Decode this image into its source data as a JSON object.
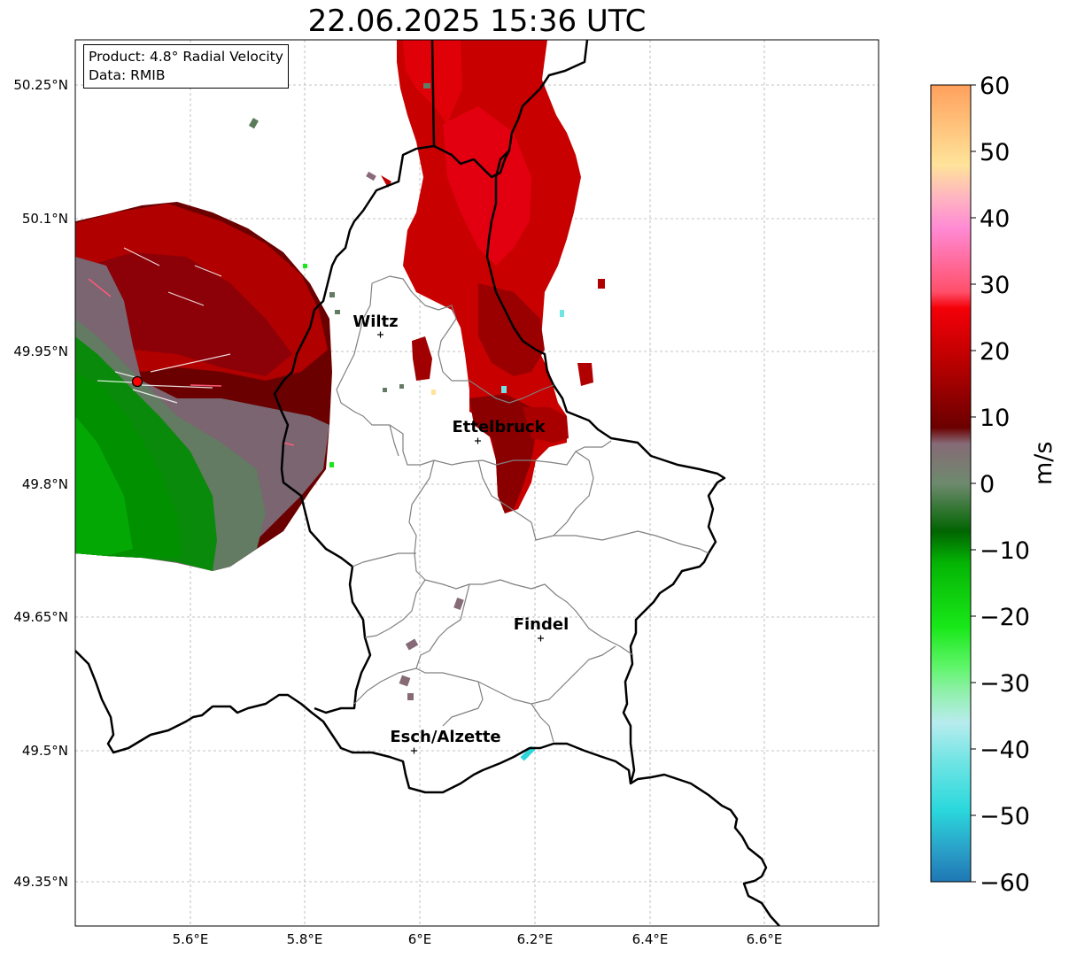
{
  "title": "22.06.2025 15:36 UTC",
  "info_box": {
    "product_line": "Product: 4.8° Radial Velocity",
    "data_line": "Data: RMIB"
  },
  "lat_ticks": [
    "50.25°N",
    "50.1°N",
    "49.95°N",
    "49.8°N",
    "49.65°N",
    "49.5°N",
    "49.35°N"
  ],
  "lon_ticks": [
    "5.6°E",
    "5.8°E",
    "6°E",
    "6.2°E",
    "6.4°E",
    "6.6°E"
  ],
  "cities": [
    {
      "name": "Wiltz"
    },
    {
      "name": "Ettelbruck"
    },
    {
      "name": "Findel"
    },
    {
      "name": "Esch/Alzette"
    }
  ],
  "radar_site": {
    "color": "#ff0000",
    "icon": "radar-site-marker"
  },
  "colorbar": {
    "label": "m/s",
    "ticks": [
      "60",
      "50",
      "40",
      "30",
      "20",
      "10",
      "0",
      "−10",
      "−20",
      "−30",
      "−40",
      "−50",
      "−60"
    ],
    "range": [
      -60,
      60
    ]
  }
}
